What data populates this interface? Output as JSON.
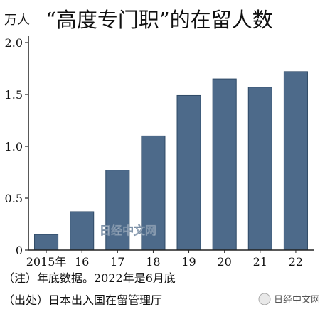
{
  "chart_data": {
    "type": "bar",
    "title": "“高度专门职”的在留人数",
    "unit_label": "万人",
    "categories": [
      "2015年",
      "16",
      "17",
      "18",
      "19",
      "20",
      "21",
      "22"
    ],
    "values": [
      0.15,
      0.37,
      0.77,
      1.1,
      1.49,
      1.65,
      1.57,
      1.72
    ],
    "ylim": [
      0,
      2.0
    ],
    "y_ticks": [
      "0",
      "0.5",
      "1.0",
      "1.5",
      "2.0"
    ],
    "grid": false,
    "bar_color": "#4d6a8a",
    "notes": [
      "（注）年底数据。2022年是6月底",
      "（出处）日本出入国在留管理厅"
    ],
    "watermark": "日经中文网",
    "wechat_watermark": "日经中文网"
  }
}
